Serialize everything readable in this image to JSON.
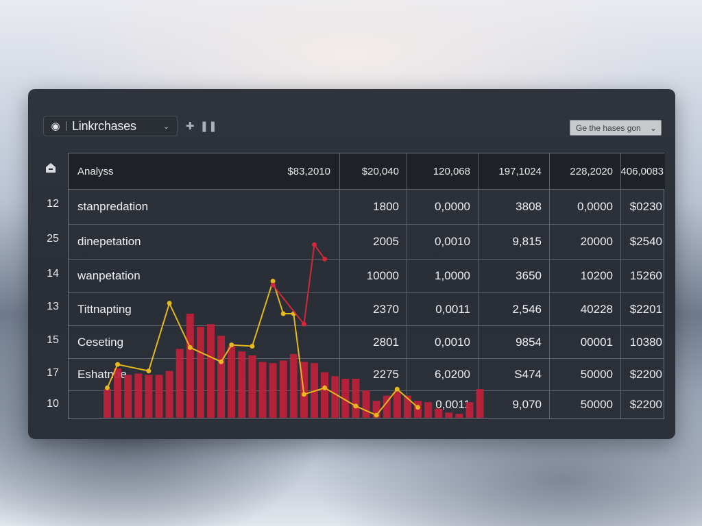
{
  "toolbar": {
    "account_label": "Linkrchases",
    "goto_button_label": "Ge the hases gon",
    "colors": {
      "bar": "#c0223a",
      "line_yellow": "#e6b820",
      "line_red": "#d2283c"
    }
  },
  "table": {
    "header": [
      "Analyss",
      "$83,2010",
      "$20,040",
      "120,068",
      "197,1024",
      "228,2020",
      "406,0083"
    ],
    "rows": [
      {
        "id": "12",
        "cells": [
          "stanpredation",
          "1800",
          "0,0000",
          "3808",
          "0,0000",
          "$0230"
        ]
      },
      {
        "id": "25",
        "cells": [
          "dinepetation",
          "2005",
          "0,0010",
          "9,815",
          "20000",
          "$2540"
        ]
      },
      {
        "id": "14",
        "cells": [
          "wanpetation",
          "10000",
          "1,0000",
          "3650",
          "10200",
          "15260"
        ]
      },
      {
        "id": "13",
        "cells": [
          "Tittnapting",
          "2370",
          "0,0011",
          "2,546",
          "40228",
          "$2201"
        ]
      },
      {
        "id": "15",
        "cells": [
          "Ceseting",
          "2801",
          "0,0010",
          "9854",
          "00001",
          "10380"
        ]
      },
      {
        "id": "17",
        "cells": [
          "Eshatnoe",
          "2275",
          "6,0200",
          "S474",
          "50000",
          "$2200"
        ]
      },
      {
        "id": "10",
        "cells": [
          "",
          "",
          "0,0011",
          "9,070",
          "50000",
          "$2200"
        ]
      }
    ]
  },
  "chart_data": {
    "type": "bar",
    "values": [
      0.22,
      0.38,
      0.33,
      0.34,
      0.33,
      0.33,
      0.36,
      0.53,
      0.8,
      0.7,
      0.72,
      0.63,
      0.55,
      0.51,
      0.48,
      0.43,
      0.42,
      0.44,
      0.49,
      0.43,
      0.42,
      0.35,
      0.32,
      0.3,
      0.3,
      0.21,
      0.13,
      0.17,
      0.2,
      0.17,
      0.13,
      0.12,
      0.07,
      0.04,
      0.03,
      0.12,
      0.22
    ],
    "series": [
      {
        "color": "#e6b820",
        "points": [
          [
            0,
            0.23
          ],
          [
            1,
            0.41
          ],
          [
            4,
            0.36
          ],
          [
            6,
            0.88
          ],
          [
            8,
            0.54
          ],
          [
            11,
            0.43
          ],
          [
            12,
            0.56
          ],
          [
            14,
            0.55
          ],
          [
            16,
            1.05
          ],
          [
            17,
            0.8
          ],
          [
            18,
            0.8
          ],
          [
            19,
            0.18
          ],
          [
            21,
            0.23
          ],
          [
            24,
            0.09
          ],
          [
            26,
            0.02
          ],
          [
            28,
            0.22
          ],
          [
            30,
            0.08
          ]
        ]
      },
      {
        "color": "#d2283c",
        "points": [
          [
            16,
            1.02
          ],
          [
            19,
            0.72
          ],
          [
            20,
            1.33
          ],
          [
            21,
            1.22
          ]
        ]
      }
    ]
  }
}
